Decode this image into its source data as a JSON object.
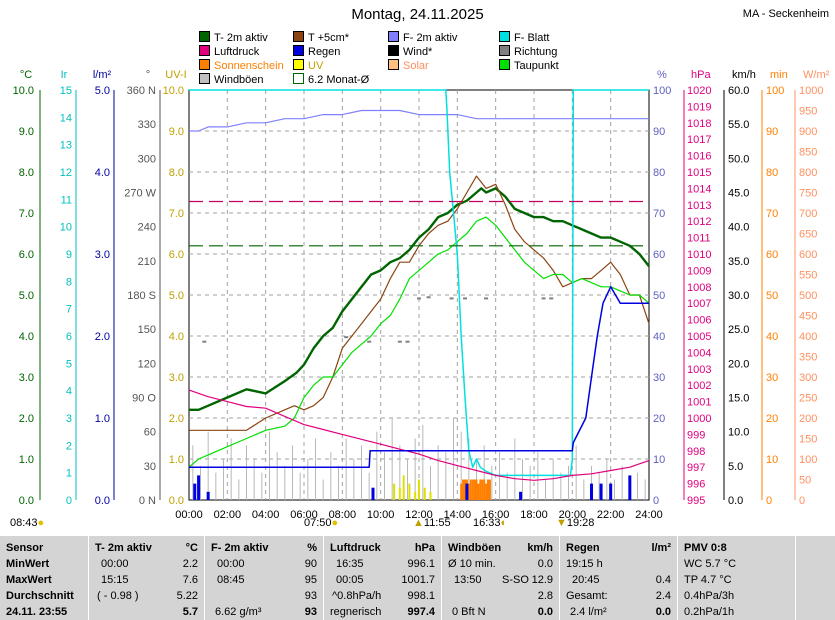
{
  "header": {
    "title": "Montag, 24.11.2025",
    "station": "MA - Seckenheim"
  },
  "legend": [
    {
      "label": "T- 2m aktiv",
      "color": "#006400"
    },
    {
      "label": "T +5cm*",
      "color": "#8b4513"
    },
    {
      "label": "F- 2m aktiv",
      "color": "#8080ff"
    },
    {
      "label": "F- Blatt",
      "color": "#00e0e0"
    },
    {
      "label": "Luftdruck",
      "color": "#e0007f"
    },
    {
      "label": "Regen",
      "color": "#0000e0"
    },
    {
      "label": "Wind*",
      "color": "#000000"
    },
    {
      "label": "Richtung",
      "color": "#808080"
    },
    {
      "label": "Sonnenschein",
      "color": "#ff8000"
    },
    {
      "label": "UV",
      "color": "#ffff00"
    },
    {
      "label": "Solar",
      "color": "#ffc080"
    },
    {
      "label": "Taupunkt",
      "color": "#00e000"
    },
    {
      "label": "Windböen",
      "color": "#c0c0c0"
    },
    {
      "label": "6.2 Monat-Ø",
      "color": "#006400"
    }
  ],
  "chart_data": {
    "type": "line",
    "x_unit": "hours",
    "xlim": [
      0,
      24
    ],
    "x_ticks": [
      "00:00",
      "02:00",
      "04:00",
      "06:00",
      "08:00",
      "10:00",
      "12:00",
      "14:00",
      "16:00",
      "18:00",
      "20:00",
      "22:00",
      "24:00"
    ],
    "axes": {
      "temp_c": {
        "unit": "°C",
        "ticks": [
          "0.0",
          "1.0",
          "2.0",
          "3.0",
          "4.0",
          "5.0",
          "6.0",
          "7.0",
          "8.0",
          "9.0",
          "10.0"
        ],
        "ylim": [
          0,
          10
        ]
      },
      "ir": {
        "unit": "Ir",
        "ticks": [
          "0",
          "1",
          "2",
          "3",
          "4",
          "5",
          "6",
          "7",
          "8",
          "9",
          "10",
          "11",
          "12",
          "13",
          "14",
          "15"
        ],
        "ylim": [
          0,
          15
        ]
      },
      "rain_l": {
        "unit": "l/m²",
        "ticks": [
          "0.0",
          "1.0",
          "2.0",
          "3.0",
          "4.0",
          "5.0"
        ],
        "ylim": [
          0,
          5
        ]
      },
      "dir": {
        "unit": "°",
        "ticks": [
          "0 N",
          "30",
          "60",
          "90 O",
          "120",
          "150",
          "180 S",
          "210",
          "240",
          "270 W",
          "300",
          "330",
          "360 N"
        ],
        "ylim": [
          0,
          360
        ]
      },
      "uv": {
        "unit": "UV-I",
        "ticks": [
          "0.0",
          "1.0",
          "2.0",
          "3.0",
          "4.0",
          "5.0",
          "6.0",
          "7.0",
          "8.0",
          "9.0",
          "10.0"
        ],
        "ylim": [
          0,
          10
        ]
      },
      "humidity": {
        "unit": "%",
        "ticks": [
          "0",
          "10",
          "20",
          "30",
          "40",
          "50",
          "60",
          "70",
          "80",
          "90",
          "100"
        ],
        "ylim": [
          0,
          100
        ]
      },
      "pressure": {
        "unit": "hPa",
        "ticks": [
          "995",
          "996",
          "997",
          "998",
          "999",
          "1000",
          "1001",
          "1002",
          "1003",
          "1004",
          "1005",
          "1006",
          "1007",
          "1008",
          "1009",
          "1010",
          "1011",
          "1012",
          "1013",
          "1014",
          "1015",
          "1016",
          "1017",
          "1018",
          "1019",
          "1020"
        ],
        "ylim": [
          995,
          1020
        ]
      },
      "wind": {
        "unit": "km/h",
        "ticks": [
          "0.0",
          "5.0",
          "10.0",
          "15.0",
          "20.0",
          "25.0",
          "30.0",
          "35.0",
          "40.0",
          "45.0",
          "50.0",
          "55.0",
          "60.0"
        ],
        "ylim": [
          0,
          60
        ]
      },
      "sun_min": {
        "unit": "min",
        "ticks": [
          "0",
          "10",
          "20",
          "30",
          "40",
          "50",
          "60",
          "70",
          "80",
          "90",
          "100"
        ],
        "ylim": [
          0,
          100
        ]
      },
      "solar": {
        "unit": "W/m²",
        "ticks": [
          "0",
          "50",
          "100",
          "150",
          "200",
          "250",
          "300",
          "350",
          "400",
          "450",
          "500",
          "550",
          "600",
          "650",
          "700",
          "750",
          "800",
          "850",
          "900",
          "950",
          "1000"
        ],
        "ylim": [
          0,
          1000
        ]
      }
    },
    "series": [
      {
        "name": "T- 2m aktiv",
        "axis": "temp_c",
        "color": "#006400",
        "width": 2.4,
        "x": [
          0,
          0.5,
          1,
          2,
          3,
          4,
          5,
          5.6,
          6,
          6.5,
          7,
          7.5,
          8,
          8.5,
          9,
          9.5,
          10,
          10.5,
          11,
          11.5,
          12,
          12.5,
          13,
          13.5,
          14,
          14.5,
          15,
          15.25,
          15.5,
          16,
          16.5,
          17,
          17.5,
          18,
          18.5,
          19,
          19.5,
          20,
          20.5,
          21,
          21.5,
          22,
          22.5,
          23,
          23.5,
          24
        ],
        "y": [
          2.2,
          2.2,
          2.3,
          2.5,
          2.7,
          2.6,
          2.9,
          3.1,
          3.3,
          3.7,
          4.0,
          4.2,
          4.6,
          4.9,
          5.2,
          5.5,
          5.6,
          5.8,
          5.9,
          6.1,
          6.4,
          6.6,
          6.9,
          7.0,
          7.2,
          7.3,
          7.5,
          7.6,
          7.5,
          7.6,
          7.4,
          7.1,
          7.0,
          6.9,
          6.9,
          6.8,
          6.8,
          6.7,
          6.6,
          6.5,
          6.4,
          6.4,
          6.3,
          6.2,
          6.0,
          5.7
        ]
      },
      {
        "name": "T +5cm*",
        "axis": "temp_c",
        "color": "#8b4513",
        "width": 1.2,
        "x": [
          0,
          1,
          2,
          3,
          4,
          5,
          5.5,
          6,
          6.5,
          7,
          7.5,
          8,
          8.5,
          9,
          9.5,
          10,
          10.5,
          11,
          11.5,
          12,
          12.5,
          13,
          13.5,
          14,
          14.5,
          15,
          15.5,
          16,
          16.5,
          17,
          17.5,
          18,
          18.5,
          19,
          19.5,
          20,
          20.5,
          21,
          21.5,
          22,
          22.5,
          23,
          23.5,
          24
        ],
        "y": [
          1.7,
          1.7,
          1.7,
          1.7,
          2.0,
          2.2,
          2.3,
          2.2,
          2.3,
          2.5,
          3.0,
          3.7,
          4.0,
          4.3,
          4.6,
          4.9,
          5.4,
          5.8,
          5.8,
          6.2,
          6.5,
          6.7,
          6.8,
          7.1,
          7.5,
          7.9,
          7.6,
          7.7,
          7.2,
          6.6,
          6.3,
          6.1,
          5.9,
          5.6,
          5.2,
          5.3,
          5.4,
          5.4,
          5.6,
          5.8,
          5.5,
          5.0,
          5.0,
          4.3
        ]
      },
      {
        "name": "Taupunkt",
        "axis": "temp_c",
        "color": "#00e000",
        "width": 1.2,
        "x": [
          0,
          0.5,
          1,
          2,
          3,
          4,
          5,
          5.5,
          6,
          6.5,
          7,
          7.5,
          8,
          8.5,
          9,
          9.5,
          10,
          10.5,
          11,
          11.5,
          12,
          12.5,
          13,
          13.5,
          14,
          14.5,
          15,
          15.5,
          16,
          16.5,
          17,
          17.5,
          18,
          18.5,
          19,
          19.5,
          20,
          20.5,
          21,
          21.5,
          22,
          22.5,
          23,
          23.5,
          24
        ],
        "y": [
          0.8,
          1.0,
          1.1,
          1.3,
          1.5,
          1.7,
          1.8,
          2.0,
          2.5,
          2.8,
          3.0,
          3.0,
          3.3,
          3.6,
          3.8,
          4.0,
          4.3,
          4.5,
          4.9,
          5.4,
          5.6,
          5.8,
          6.0,
          6.1,
          6.3,
          6.5,
          6.8,
          6.9,
          6.7,
          6.4,
          6.1,
          5.8,
          5.6,
          5.4,
          5.5,
          5.5,
          5.3,
          5.4,
          5.3,
          5.2,
          5.2,
          5.1,
          5.0,
          5.0,
          4.8
        ]
      },
      {
        "name": "F- 2m aktiv",
        "axis": "humidity",
        "color": "#8080ff",
        "width": 1.2,
        "x": [
          0,
          0.5,
          1,
          2,
          3,
          4,
          5,
          6,
          7,
          8,
          9,
          10,
          11,
          12,
          13,
          14,
          15,
          16,
          17,
          18,
          19,
          20,
          21,
          22,
          23,
          24
        ],
        "y": [
          90,
          90,
          91,
          91,
          92,
          92,
          93,
          93,
          94,
          94,
          95,
          95,
          95,
          94,
          94,
          94,
          93,
          93,
          93,
          93,
          93,
          93,
          93,
          93,
          93,
          93
        ]
      },
      {
        "name": "F- Blatt",
        "axis": "humidity",
        "color": "#00e0e0",
        "width": 1.5,
        "x": [
          0,
          13.4,
          13.45,
          13.6,
          14,
          14.2,
          14.4,
          14.6,
          14.8,
          15,
          15.2,
          15.5,
          16,
          17,
          18,
          19,
          19.9,
          20,
          20.05,
          24
        ],
        "y": [
          100,
          100,
          96,
          80,
          60,
          40,
          25,
          12,
          8,
          10,
          8,
          7,
          6,
          6,
          6,
          6,
          6,
          10,
          100,
          100
        ]
      },
      {
        "name": "Luftdruck",
        "axis": "pressure",
        "color": "#e0007f",
        "width": 1.2,
        "x": [
          0,
          1,
          2,
          3,
          4,
          5,
          6,
          7,
          8,
          9,
          10,
          11,
          12,
          13,
          14,
          15,
          16,
          17,
          18,
          19,
          20,
          21,
          22,
          23,
          24
        ],
        "y": [
          1001.7,
          1001.3,
          1001.0,
          1000.7,
          1000.6,
          1000.1,
          999.6,
          999.3,
          999.0,
          998.7,
          998.4,
          998.1,
          997.8,
          997.4,
          997.1,
          996.8,
          996.5,
          996.3,
          996.2,
          996.3,
          996.5,
          996.6,
          996.8,
          997.0,
          997.4
        ]
      },
      {
        "name": "Regen",
        "axis": "rain_l",
        "color": "#0000e0",
        "width": 1.5,
        "x": [
          0,
          9.4,
          9.45,
          20.0,
          20.05,
          20.7,
          21.0,
          21.3,
          21.6,
          22.0,
          22.5,
          23,
          24
        ],
        "y": [
          0.4,
          0.4,
          0.6,
          0.6,
          0.7,
          1.0,
          1.5,
          2.0,
          2.4,
          2.6,
          2.4,
          2.4,
          2.4
        ]
      },
      {
        "name": "6.2 Monat-Ø",
        "axis": "temp_c",
        "color": "#006400",
        "width": 1.2,
        "dash": "14,6",
        "x": [
          0,
          24
        ],
        "y": [
          6.2,
          6.2
        ]
      },
      {
        "name": "ref-pressure",
        "axis": "pressure",
        "color": "#c0005f",
        "width": 1.2,
        "dash": "14,6",
        "x": [
          0,
          24
        ],
        "y": [
          1013.2,
          1013.2
        ]
      }
    ],
    "bars": [
      {
        "name": "Windböen",
        "axis": "wind",
        "color": "#b8b8b8",
        "width": 1,
        "x": [
          0.2,
          0.6,
          1.0,
          1.4,
          1.8,
          2.2,
          2.6,
          3.0,
          3.4,
          3.8,
          4.2,
          4.6,
          5.0,
          5.4,
          5.8,
          6.2,
          6.6,
          7.0,
          7.4,
          7.8,
          8.2,
          8.6,
          9.0,
          9.4,
          9.8,
          10.2,
          10.6,
          11.0,
          11.4,
          11.8,
          12.2,
          12.6,
          13.0,
          13.4,
          13.8,
          14.2,
          14.6,
          15.0,
          15.4,
          15.8,
          16.2,
          16.6,
          17.0,
          17.4,
          17.8,
          18.2,
          18.6,
          19.0,
          19.4,
          19.8,
          20.2,
          20.6,
          21.0,
          21.4,
          21.8,
          22.2,
          22.6,
          23.0,
          23.4,
          23.8
        ],
        "y": [
          8,
          5,
          10,
          4,
          6,
          9,
          3,
          8,
          6,
          4,
          10,
          7,
          5,
          8,
          4,
          6,
          9,
          3,
          7,
          5,
          9,
          6,
          8,
          4,
          10,
          7,
          12,
          8,
          6,
          9,
          11,
          5,
          8,
          7,
          12,
          10,
          9,
          6,
          8,
          5,
          7,
          4,
          9,
          6,
          5,
          7,
          3,
          6,
          4,
          5,
          8,
          3,
          5,
          4,
          6,
          3,
          5,
          2,
          4,
          3
        ]
      },
      {
        "name": "Sonnenschein",
        "axis": "sun_min",
        "color": "#ff8000",
        "width": 2,
        "x": [
          14.2,
          14.3,
          14.4,
          14.5,
          14.6,
          14.7,
          14.8,
          14.9,
          15.0,
          15.1,
          15.2,
          15.3,
          15.4,
          15.5,
          15.6,
          15.7
        ],
        "y": [
          4,
          5,
          5,
          5,
          4,
          5,
          5,
          5,
          5,
          4,
          5,
          5,
          5,
          4,
          5,
          5
        ]
      },
      {
        "name": "Regen-Menge",
        "axis": "rain_l",
        "color": "#0000e0",
        "width": 3,
        "x": [
          0.3,
          0.5,
          1.0,
          9.6,
          14.5,
          17.3,
          21.0,
          21.5,
          22.0,
          23.0
        ],
        "y": [
          0.2,
          0.3,
          0.1,
          0.15,
          0.2,
          0.1,
          0.2,
          0.2,
          0.2,
          0.3
        ]
      },
      {
        "name": "UV",
        "axis": "uv",
        "color": "#e0e000",
        "width": 2,
        "x": [
          10.7,
          11.0,
          11.2,
          11.5,
          11.8,
          12.0,
          12.3,
          12.6
        ],
        "y": [
          0.4,
          0.3,
          0.6,
          0.4,
          0.2,
          0.5,
          0.3,
          0.2
        ]
      }
    ],
    "dots": [
      {
        "name": "Richtung",
        "axis": "dir",
        "color": "#808080",
        "x": [
          0.8,
          8.2,
          9.4,
          11.0,
          11.4,
          12.0,
          12.5,
          13.7,
          14.4,
          15.5,
          18.5,
          18.9
        ],
        "y": [
          139,
          143,
          139,
          139,
          139,
          177,
          178,
          177,
          177,
          177,
          177,
          177
        ]
      }
    ]
  },
  "events": [
    {
      "time": "08:43",
      "icon": "sun-icon",
      "kind": "sunrise-label"
    },
    {
      "time": "07:50",
      "icon": "sun-icon",
      "kind": "sunrise"
    },
    {
      "time": "11:55",
      "icon": "arrow-up-icon",
      "kind": "solar-noon"
    },
    {
      "time": "16:33",
      "icon": "moon-icon",
      "kind": "sunset"
    },
    {
      "time": "19:28",
      "icon": "arrow-down-icon",
      "kind": "moonset"
    }
  ],
  "stats": {
    "labels": {
      "title": "Sensor",
      "min": "MinWert",
      "max": "MaxWert",
      "avg": "Durchschnitt",
      "date": "24.11. 23:55"
    },
    "temp": {
      "head": "T- 2m aktiv",
      "unit": "°C",
      "min_t": "00:00",
      "min_v": "2.2",
      "max_t": "15:15",
      "max_v": "7.6",
      "avg_t": "( - 0.98 )",
      "avg_v": "5.22",
      "cur": "5.7"
    },
    "hum": {
      "head": "F- 2m aktiv",
      "unit": "%",
      "min_t": "00:00",
      "min_v": "90",
      "max_t": "08:45",
      "max_v": "95",
      "avg_v": "93",
      "abs": "6.62 g/m³",
      "cur": "93"
    },
    "press": {
      "head": "Luftdruck",
      "unit": "hPa",
      "min_t": "16:35",
      "min_v": "996.1",
      "max_t": "00:05",
      "max_v": "1001.7",
      "avg_t": "^0.8hPa/h",
      "avg_v": "998.1",
      "trend": "regnerisch",
      "cur": "997.4"
    },
    "wind": {
      "head": "Windböen",
      "unit": "km/h",
      "min_t": "Ø 10 min.",
      "min_v": "0.0",
      "max_t": "13:50",
      "max_dir": "S-SO",
      "max_v": "12.9",
      "avg_v": "2.8",
      "cur_t": "0 Bft N",
      "cur": "0.0"
    },
    "rain": {
      "head": "Regen",
      "unit": "l/m²",
      "min_t": "19:15 h",
      "max_t": "20:45",
      "max_v": "0.4",
      "sum_label": "Gesamt:",
      "sum_v": "2.4",
      "cur_t": "2.4 l/m²",
      "cur": "0.0"
    },
    "pmv": {
      "head": "PMV 0:8",
      "wc": "WC 5.7 °C",
      "tp": "TP 4.7 °C",
      "rate1": "0.4hPa/3h",
      "rate2": "0.2hPa/1h"
    }
  }
}
